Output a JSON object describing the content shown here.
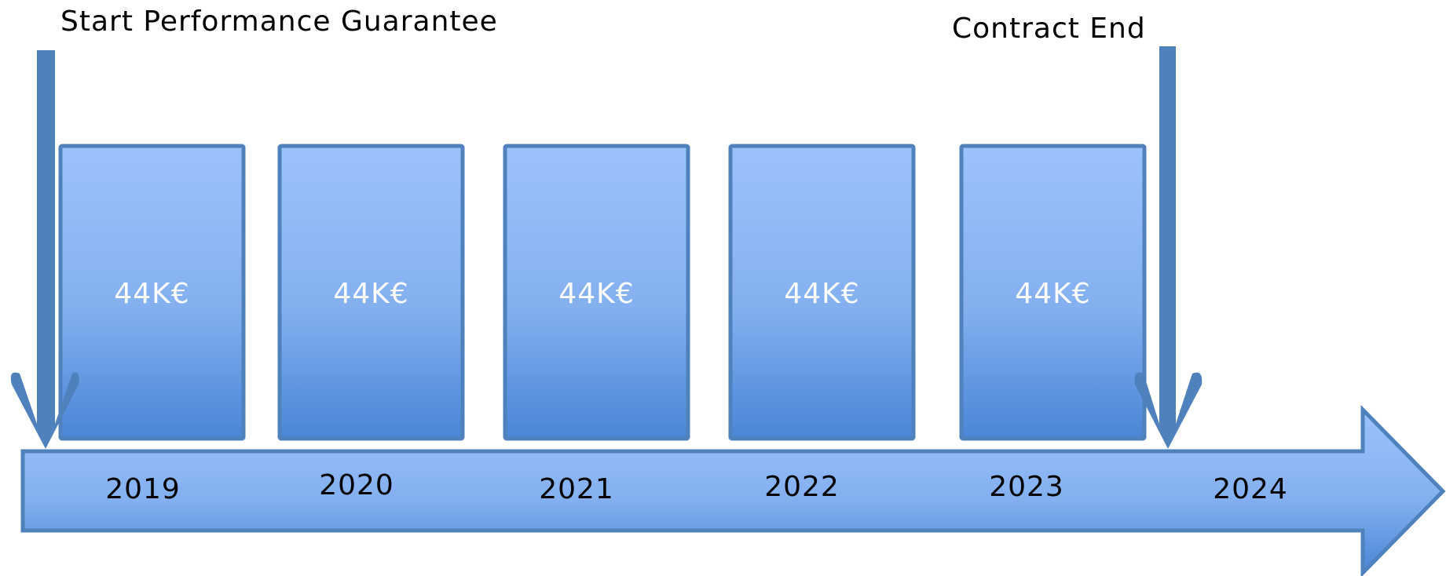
{
  "start_label": "Start Performance Guarantee",
  "end_label": "Contract End",
  "amounts": [
    "44K€",
    "44K€",
    "44K€",
    "44K€",
    "44K€"
  ],
  "years": [
    "2019",
    "2020",
    "2021",
    "2022",
    "2023",
    "2024"
  ]
}
